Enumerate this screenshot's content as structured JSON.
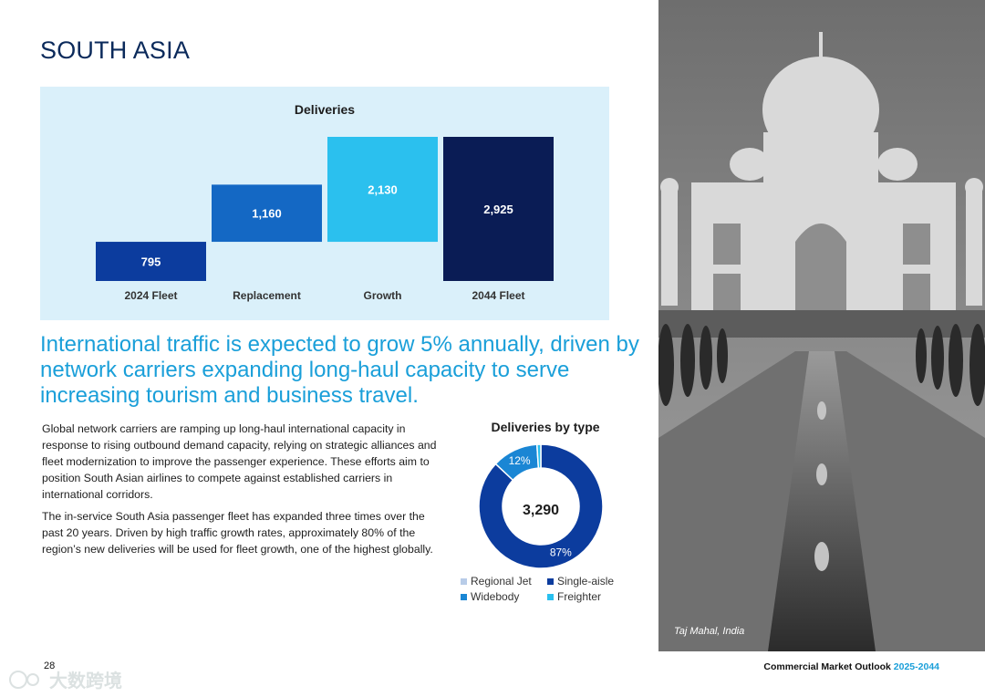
{
  "page": {
    "region_title": "SOUTH ASIA",
    "headline": "International traffic is expected to grow 5% annually, driven by network carriers expanding long-haul capacity to serve increasing tourism and business travel.",
    "paragraphs": [
      "Global network carriers are ramping up long-haul international capacity in response to rising outbound demand capacity, relying on strategic alliances and fleet modernization to improve the passenger experience. These efforts aim to position South Asian airlines to compete against established carriers in international corridors.",
      "The in-service South Asia passenger fleet has expanded three times over the past 20 years. Driven by high traffic growth rates, approximately 80% of the region’s new deliveries will be used for fleet growth, one of the highest globally."
    ],
    "page_number": "28",
    "footer_title": "Commercial Market Outlook",
    "footer_years": "2025-2044",
    "photo_caption": "Taj Mahal, India",
    "watermark": "大数跨境"
  },
  "chart_data": [
    {
      "type": "bar",
      "subtype": "waterfall",
      "title": "Deliveries",
      "categories": [
        "2024 Fleet",
        "Replacement",
        "Growth",
        "2044 Fleet"
      ],
      "values": [
        795,
        1160,
        2130,
        2925
      ],
      "value_labels": [
        "795",
        "1,160",
        "2,130",
        "2,925"
      ],
      "bases": [
        0,
        795,
        795,
        0
      ],
      "colors": [
        "#0c3c9e",
        "#1468c4",
        "#2bc0ee",
        "#0a1c55"
      ],
      "ylim": [
        0,
        2925
      ]
    },
    {
      "type": "pie",
      "subtype": "donut",
      "title": "Deliveries by type",
      "center_label": "3,290",
      "series": [
        {
          "name": "Regional Jet",
          "value": 0,
          "color": "#b8cce8"
        },
        {
          "name": "Single-aisle",
          "value": 87,
          "label": "87%",
          "color": "#0c3c9e"
        },
        {
          "name": "Widebody",
          "value": 12,
          "label": "12%",
          "color": "#1a86d4"
        },
        {
          "name": "Freighter",
          "value": 1,
          "color": "#29c0ef"
        }
      ]
    }
  ]
}
